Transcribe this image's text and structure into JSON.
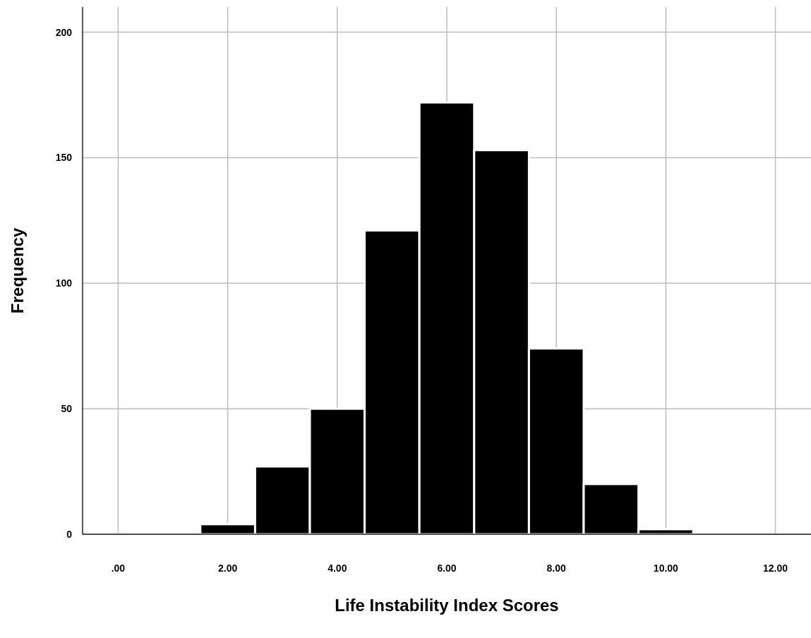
{
  "chart_data": {
    "type": "histogram",
    "xlabel": "Life Instability Index Scores",
    "ylabel": "Frequency",
    "bins": [
      1.5,
      2.5,
      3.5,
      4.5,
      5.5,
      6.5,
      7.5,
      8.5,
      9.5,
      10.5
    ],
    "values": [
      4,
      27,
      50,
      121,
      172,
      153,
      74,
      20,
      2
    ],
    "color": "#000000",
    "xlim": [
      -0.65,
      12.65
    ],
    "xticks": [
      {
        "value": 0,
        "label": ".00"
      },
      {
        "value": 2,
        "label": "2.00"
      },
      {
        "value": 4,
        "label": "4.00"
      },
      {
        "value": 6,
        "label": "6.00"
      },
      {
        "value": 8,
        "label": "8.00"
      },
      {
        "value": 10,
        "label": "10.00"
      },
      {
        "value": 12,
        "label": "12.00"
      }
    ],
    "ylim": [
      0,
      210
    ],
    "yticks": [
      0,
      50,
      100,
      150,
      200
    ],
    "grid": true
  }
}
